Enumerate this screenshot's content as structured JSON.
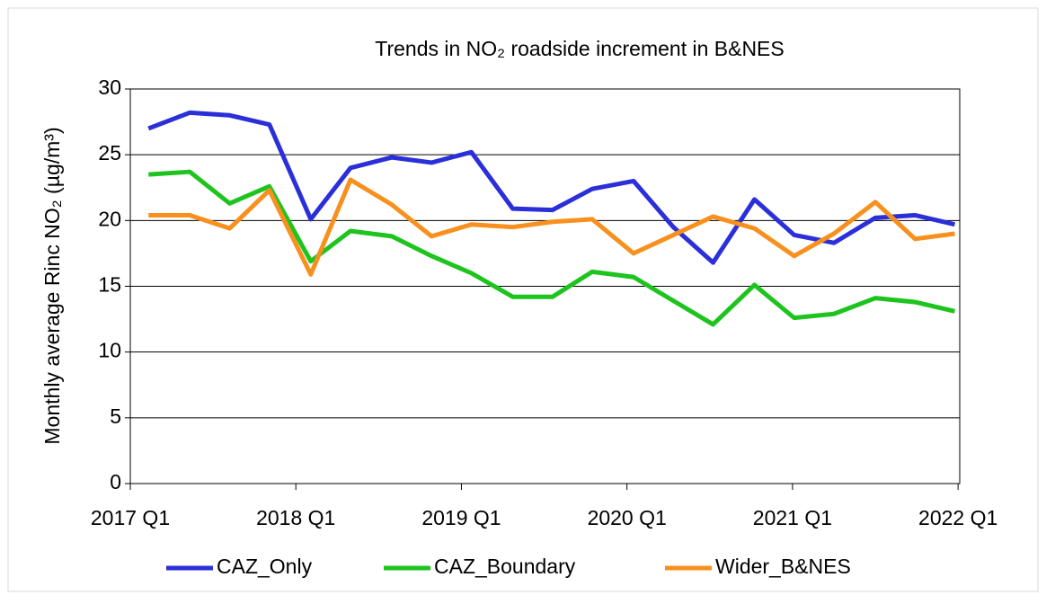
{
  "chart_data": {
    "type": "line",
    "title": "Trends in NO₂ roadside increment in B&NES",
    "y_label": "Monthly average Rinc NO₂ (µg/m³)",
    "x": [
      2017.11,
      2017.36,
      2017.6,
      2017.84,
      2018.09,
      2018.33,
      2018.58,
      2018.82,
      2019.06,
      2019.31,
      2019.55,
      2019.79,
      2020.04,
      2020.28,
      2020.52,
      2020.77,
      2021.01,
      2021.25,
      2021.5,
      2021.74,
      2021.98
    ],
    "series": [
      {
        "name": "CAZ_Only",
        "color": "#2b2fd9",
        "values": [
          27,
          28.2,
          28,
          27.3,
          20.1,
          24,
          24.8,
          24.4,
          25.2,
          20.9,
          20.8,
          22.4,
          23,
          19.5,
          16.8,
          21.6,
          18.9,
          18.3,
          20.2,
          20.4,
          19.7
        ]
      },
      {
        "name": "CAZ_Boundary",
        "color": "#1ec41e",
        "values": [
          23.5,
          23.7,
          21.3,
          22.6,
          16.9,
          19.2,
          18.8,
          17.3,
          16,
          14.2,
          14.2,
          16.1,
          15.7,
          13.9,
          12.1,
          15.1,
          12.6,
          12.9,
          14.1,
          13.8,
          13.1
        ]
      },
      {
        "name": "Wider_B&NES",
        "color": "#f7901e",
        "values": [
          20.4,
          20.4,
          19.4,
          22.3,
          15.9,
          23.1,
          21.2,
          18.8,
          19.7,
          19.5,
          19.9,
          20.1,
          17.5,
          18.9,
          20.3,
          19.4,
          17.3,
          19,
          21.4,
          18.6,
          19
        ]
      }
    ],
    "xlim": [
      2017,
      2022.01
    ],
    "xticks": [
      {
        "value": 2017,
        "label": "2017 Q1"
      },
      {
        "value": 2018,
        "label": "2018 Q1"
      },
      {
        "value": 2019,
        "label": "2019 Q1"
      },
      {
        "value": 2020,
        "label": "2020 Q1"
      },
      {
        "value": 2021,
        "label": "2021 Q1"
      },
      {
        "value": 2022,
        "label": "2022 Q1"
      }
    ],
    "ylim": [
      0,
      30
    ],
    "yticks": [
      0,
      5,
      10,
      15,
      20,
      25,
      30
    ],
    "grid": true,
    "legend": "bottom"
  }
}
